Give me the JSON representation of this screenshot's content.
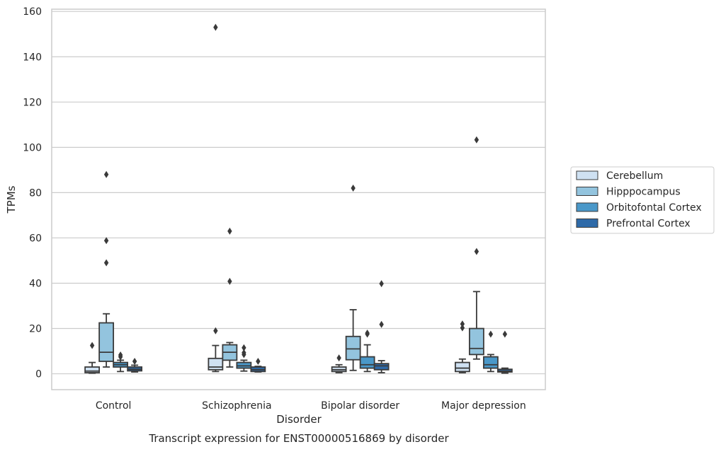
{
  "chart_data": {
    "type": "box",
    "title": "",
    "caption": "Transcript expression for ENST00000516869 by disorder",
    "xlabel": "Disorder",
    "ylabel": "TPMs",
    "ylim": [
      -7,
      161
    ],
    "yticks": [
      0,
      20,
      40,
      60,
      80,
      100,
      120,
      140,
      160
    ],
    "grid": "horizontal",
    "legend_position": "right",
    "categories": [
      "Control",
      "Schizophrenia",
      "Bipolar disorder",
      "Major depression"
    ],
    "series": [
      {
        "name": "Cerebellum",
        "color": "#cfe1f2",
        "boxes": [
          {
            "whisker_low": 0.3,
            "q1": 0.5,
            "median": 1.2,
            "q3": 3.0,
            "whisker_high": 5.0,
            "outliers": [
              12.5
            ]
          },
          {
            "whisker_low": 1.0,
            "q1": 1.8,
            "median": 3.0,
            "q3": 6.8,
            "whisker_high": 12.5,
            "outliers": [
              19.0,
              153.0
            ]
          },
          {
            "whisker_low": 0.5,
            "q1": 1.0,
            "median": 1.8,
            "q3": 3.0,
            "whisker_high": 4.0,
            "outliers": [
              7.0
            ]
          },
          {
            "whisker_low": 0.5,
            "q1": 1.0,
            "median": 2.5,
            "q3": 5.0,
            "whisker_high": 6.5,
            "outliers": [
              20.3,
              22.0
            ]
          }
        ]
      },
      {
        "name": "Hipppocampus",
        "color": "#93c4de",
        "boxes": [
          {
            "whisker_low": 3.0,
            "q1": 5.5,
            "median": 9.5,
            "q3": 22.5,
            "whisker_high": 26.5,
            "outliers": [
              49.0,
              58.8,
              88.0
            ]
          },
          {
            "whisker_low": 3.0,
            "q1": 6.0,
            "median": 9.5,
            "q3": 12.8,
            "whisker_high": 13.8,
            "outliers": [
              40.8,
              63.0
            ]
          },
          {
            "whisker_low": 1.5,
            "q1": 6.2,
            "median": 11.0,
            "q3": 16.5,
            "whisker_high": 28.3,
            "outliers": [
              82.0
            ]
          },
          {
            "whisker_low": 6.5,
            "q1": 8.5,
            "median": 11.2,
            "q3": 20.0,
            "whisker_high": 36.3,
            "outliers": [
              54.0,
              103.3
            ]
          }
        ]
      },
      {
        "name": "Orbitofontal Cortex",
        "color": "#4a98c9",
        "boxes": [
          {
            "whisker_low": 1.0,
            "q1": 3.0,
            "median": 4.0,
            "q3": 5.0,
            "whisker_high": 6.0,
            "outliers": [
              8.3,
              7.5
            ]
          },
          {
            "whisker_low": 1.2,
            "q1": 2.5,
            "median": 3.5,
            "q3": 5.0,
            "whisker_high": 6.0,
            "outliers": [
              8.5,
              9.3,
              11.5
            ]
          },
          {
            "whisker_low": 1.0,
            "q1": 2.5,
            "median": 4.0,
            "q3": 7.5,
            "whisker_high": 12.8,
            "outliers": [
              17.5,
              18.0
            ]
          },
          {
            "whisker_low": 1.0,
            "q1": 2.5,
            "median": 4.0,
            "q3": 7.5,
            "whisker_high": 8.5,
            "outliers": [
              17.5
            ]
          }
        ]
      },
      {
        "name": "Prefrontal Cortex",
        "color": "#2e6aa8",
        "boxes": [
          {
            "whisker_low": 0.8,
            "q1": 1.3,
            "median": 2.0,
            "q3": 3.0,
            "whisker_high": 3.8,
            "outliers": [
              5.5
            ]
          },
          {
            "whisker_low": 0.8,
            "q1": 1.0,
            "median": 1.8,
            "q3": 3.0,
            "whisker_high": 3.3,
            "outliers": [
              5.5
            ]
          },
          {
            "whisker_low": 0.5,
            "q1": 1.8,
            "median": 3.5,
            "q3": 4.5,
            "whisker_high": 5.8,
            "outliers": [
              21.8,
              39.8
            ]
          },
          {
            "whisker_low": 0.3,
            "q1": 0.8,
            "median": 1.2,
            "q3": 2.0,
            "whisker_high": 2.5,
            "outliers": [
              17.5
            ]
          }
        ]
      }
    ]
  }
}
